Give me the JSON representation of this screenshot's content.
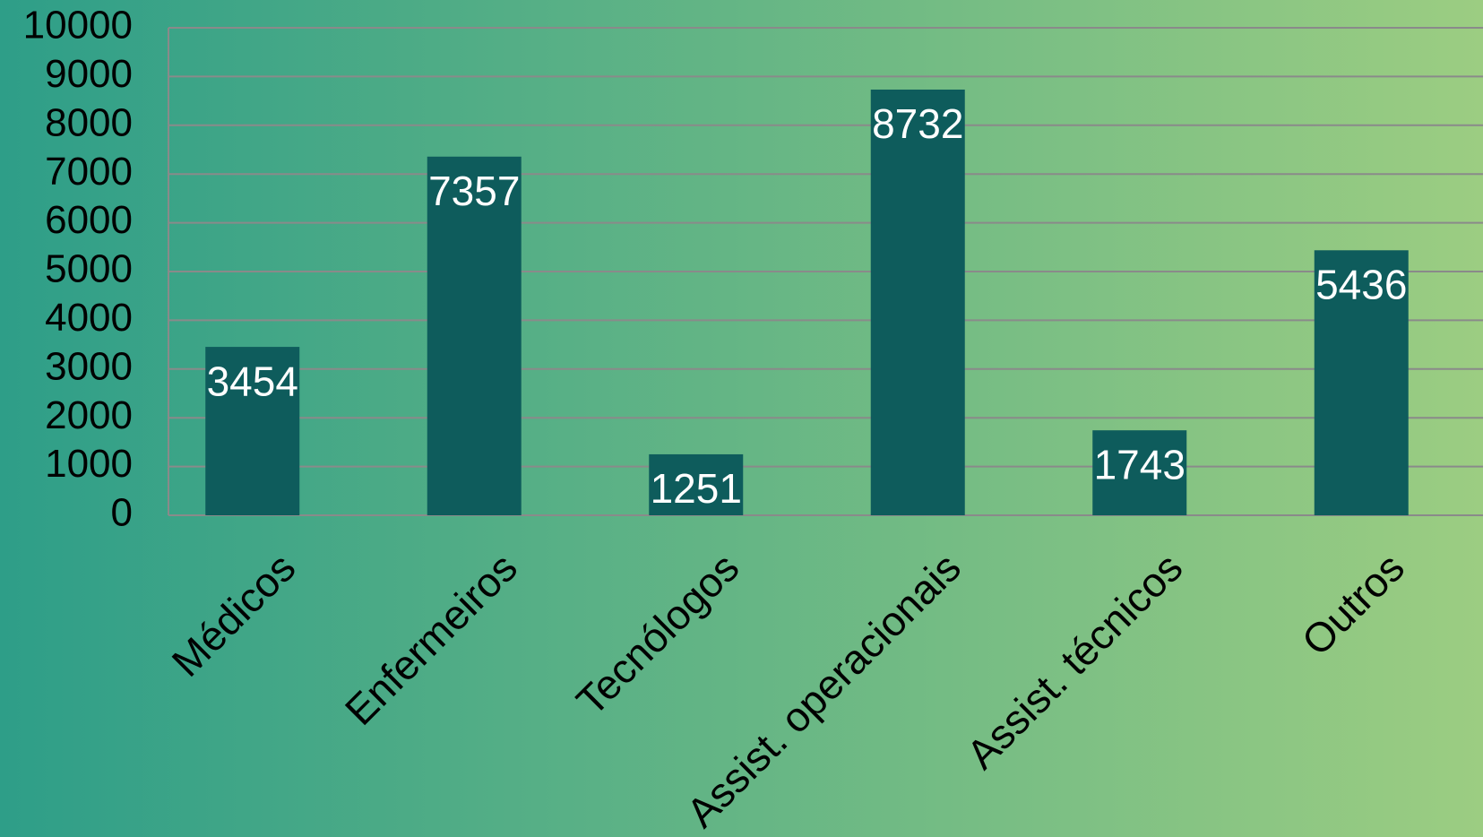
{
  "chart_data": {
    "type": "bar",
    "categories": [
      "Médicos",
      "Enfermeiros",
      "Tecnólogos",
      "Assist. operacionais",
      "Assist. técnicos",
      "Outros"
    ],
    "values": [
      3454,
      7357,
      1251,
      8732,
      1743,
      5436
    ],
    "color": "#0e5c5c",
    "ylim": [
      0,
      10000
    ],
    "yticks": [
      0,
      1000,
      2000,
      3000,
      4000,
      5000,
      6000,
      7000,
      8000,
      9000,
      10000
    ],
    "grid": true
  }
}
